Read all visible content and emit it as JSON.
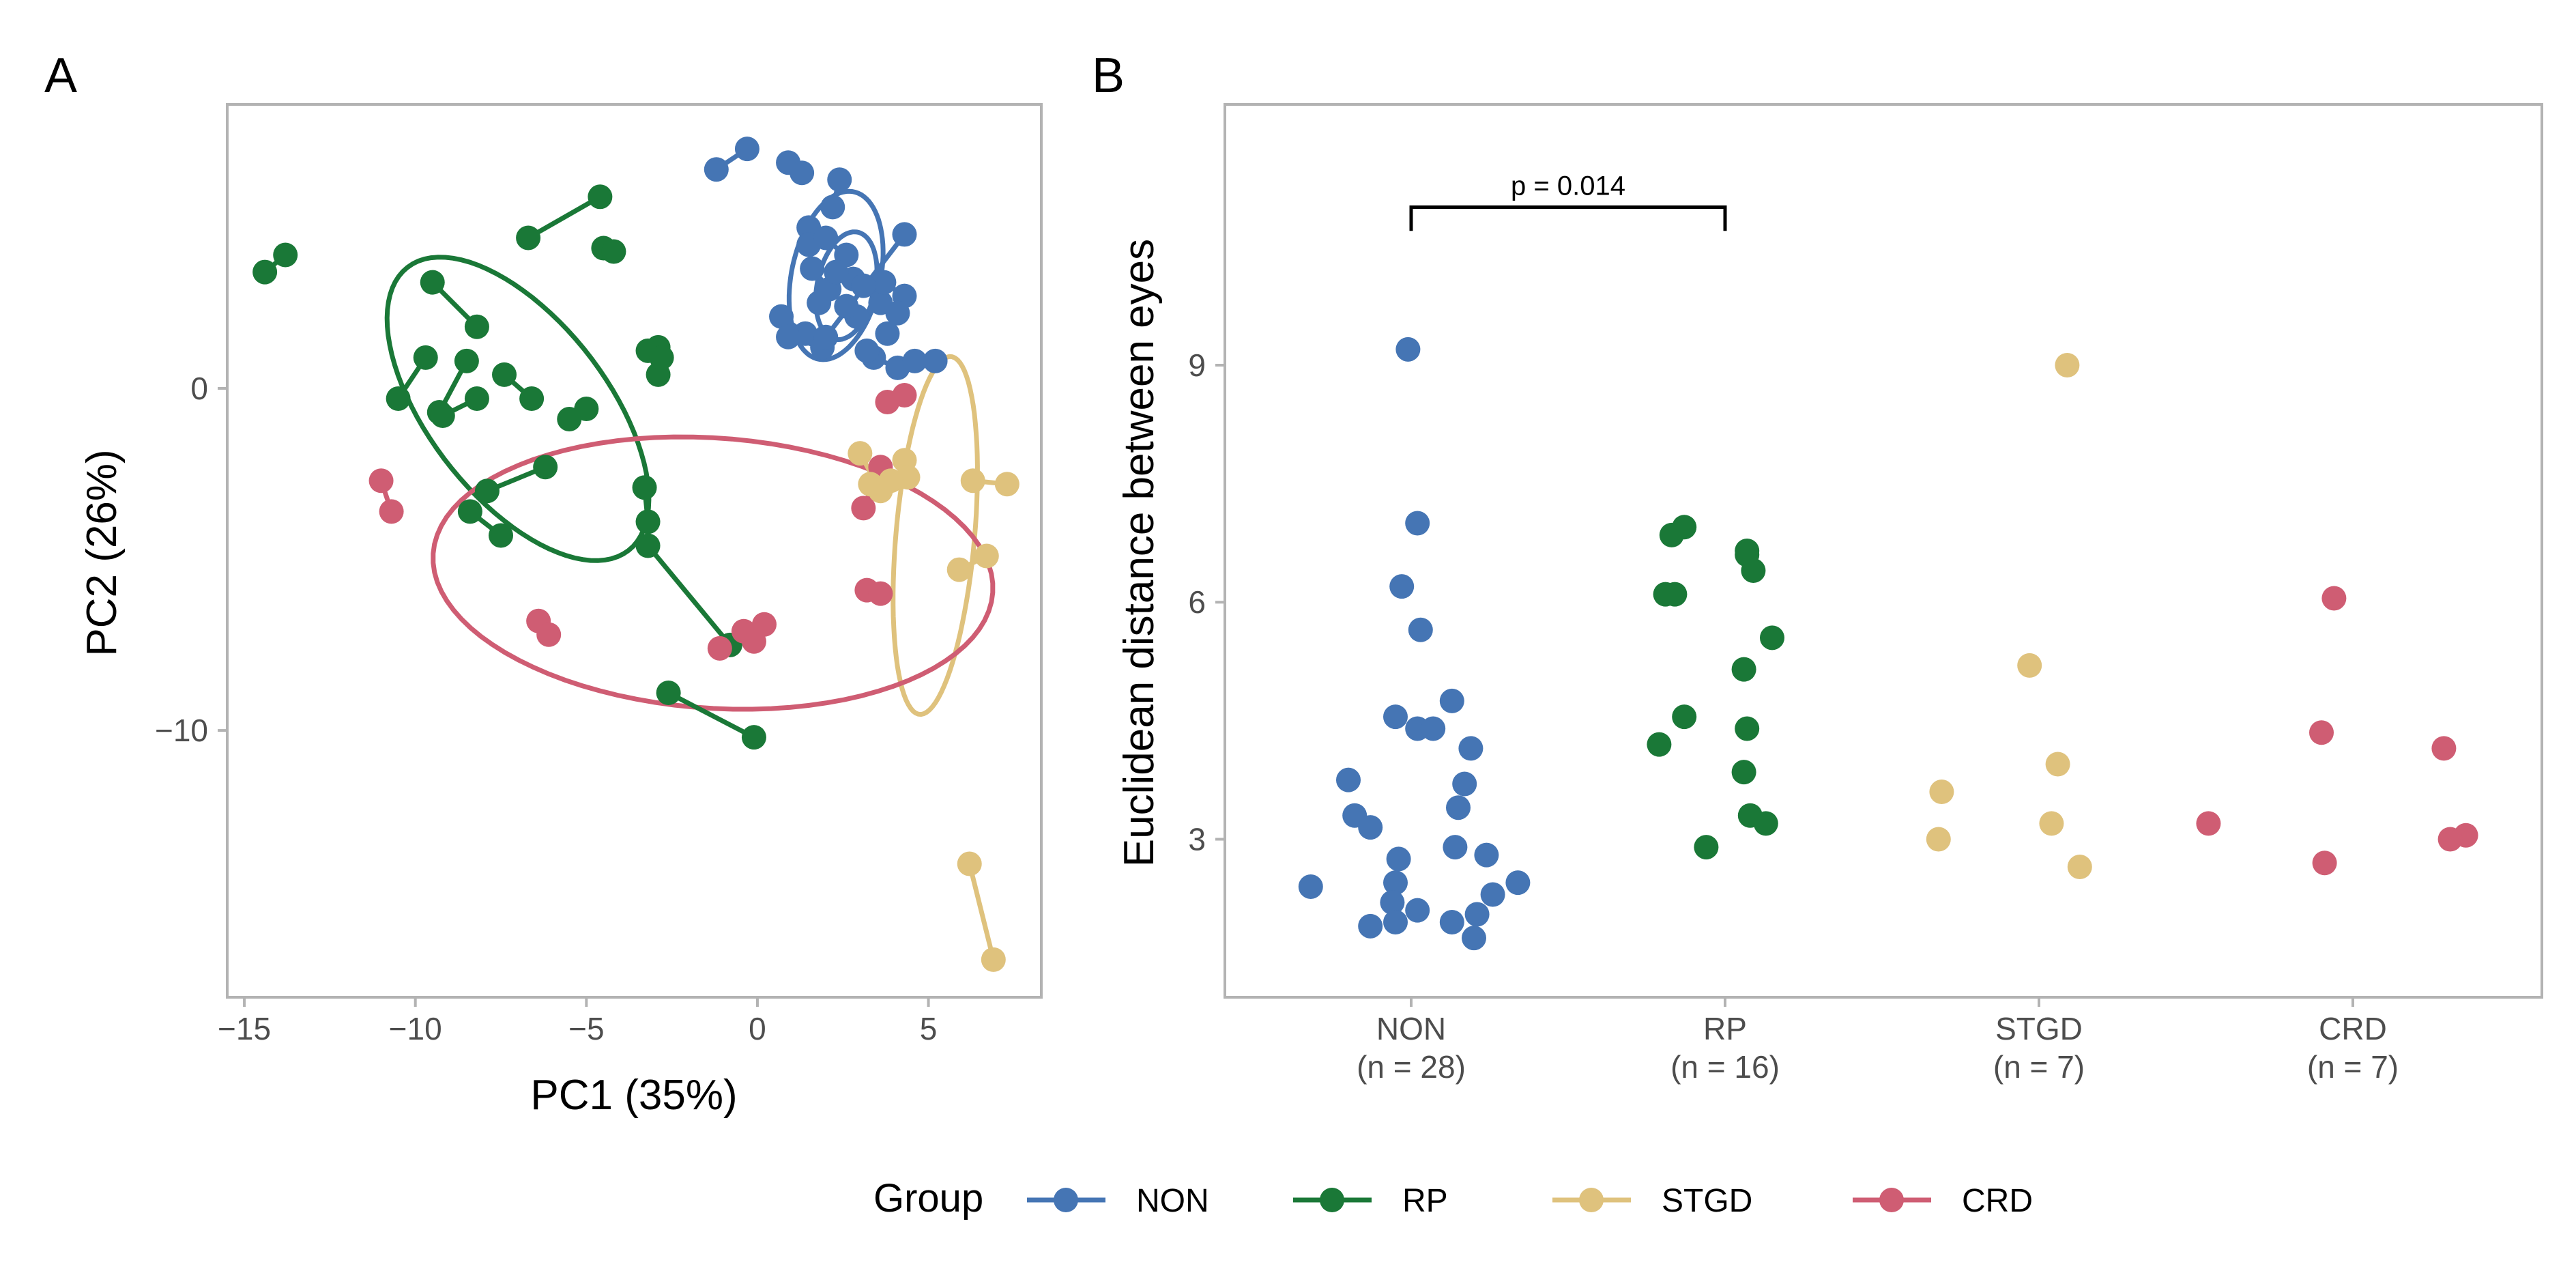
{
  "colors": {
    "NON": "#4575b4",
    "RP": "#1a7837",
    "STGD": "#dfc27d",
    "CRD": "#cf5d73"
  },
  "legend": {
    "title": "Group",
    "items": [
      {
        "key": "NON",
        "label": "NON"
      },
      {
        "key": "RP",
        "label": "RP"
      },
      {
        "key": "STGD",
        "label": "STGD"
      },
      {
        "key": "CRD",
        "label": "CRD"
      }
    ]
  },
  "chart_data": [
    {
      "panel": "A",
      "type": "scatter",
      "xlabel": "PC1 (35%)",
      "ylabel": "PC2 (26%)",
      "xlim": [
        -15.5,
        8.3
      ],
      "ylim": [
        -17.8,
        8.3
      ],
      "xticks": [
        {
          "v": -15,
          "label": "−15"
        },
        {
          "v": -10,
          "label": "−10"
        },
        {
          "v": -5,
          "label": "−5"
        },
        {
          "v": 0,
          "label": "0"
        },
        {
          "v": 5,
          "label": "5"
        }
      ],
      "yticks": [
        {
          "v": 0,
          "label": "0"
        },
        {
          "v": -10,
          "label": "−10"
        }
      ],
      "ellipses": [
        {
          "group": "NON",
          "cx": 2.3,
          "cy": 3.3,
          "rx": 2.6,
          "ry": 5.0,
          "angle": -12
        },
        {
          "group": "NON",
          "cx": 2.6,
          "cy": 3.0,
          "rx": 1.7,
          "ry": 3.2,
          "angle": -12
        },
        {
          "group": "RP",
          "cx": -7.0,
          "cy": -0.6,
          "rx": 10.5,
          "ry": 5.2,
          "angle": -52
        },
        {
          "group": "STGD",
          "cx": 5.2,
          "cy": -4.3,
          "rx": 2.3,
          "ry": 10.5,
          "angle": -5
        },
        {
          "group": "CRD",
          "cx": -1.3,
          "cy": -5.4,
          "rx": 16.4,
          "ry": 7.9,
          "angle": -4
        }
      ],
      "pairs": [
        {
          "group": "RP",
          "a": [
            -14.4,
            3.4
          ],
          "b": [
            -13.8,
            3.9
          ]
        },
        {
          "group": "RP",
          "a": [
            -6.7,
            4.4
          ],
          "b": [
            -4.6,
            5.6
          ]
        },
        {
          "group": "RP",
          "a": [
            -4.5,
            4.1
          ],
          "b": [
            -4.2,
            4.0
          ]
        },
        {
          "group": "RP",
          "a": [
            -9.5,
            3.1
          ],
          "b": [
            -8.2,
            1.8
          ]
        },
        {
          "group": "RP",
          "a": [
            -10.5,
            -0.3
          ],
          "b": [
            -9.7,
            0.9
          ]
        },
        {
          "group": "RP",
          "a": [
            -8.5,
            0.8
          ],
          "b": [
            -9.3,
            -0.7
          ]
        },
        {
          "group": "RP",
          "a": [
            -7.4,
            0.4
          ],
          "b": [
            -6.6,
            -0.3
          ]
        },
        {
          "group": "RP",
          "a": [
            -8.2,
            -0.3
          ],
          "b": [
            -9.2,
            -0.8
          ]
        },
        {
          "group": "RP",
          "a": [
            -5.0,
            -0.6
          ],
          "b": [
            -5.5,
            -0.9
          ]
        },
        {
          "group": "RP",
          "a": [
            -3.2,
            1.1
          ],
          "b": [
            -2.9,
            0.4
          ]
        },
        {
          "group": "RP",
          "a": [
            -2.9,
            1.2
          ],
          "b": [
            -2.8,
            0.9
          ]
        },
        {
          "group": "RP",
          "a": [
            -6.2,
            -2.3
          ],
          "b": [
            -7.9,
            -3.0
          ]
        },
        {
          "group": "RP",
          "a": [
            -8.4,
            -3.6
          ],
          "b": [
            -7.5,
            -4.3
          ]
        },
        {
          "group": "RP",
          "a": [
            -3.3,
            -2.9
          ],
          "b": [
            -3.2,
            -3.9
          ]
        },
        {
          "group": "RP",
          "a": [
            -3.2,
            -4.6
          ],
          "b": [
            -0.8,
            -7.5
          ]
        },
        {
          "group": "RP",
          "a": [
            -2.6,
            -8.9
          ],
          "b": [
            -0.1,
            -10.2
          ]
        },
        {
          "group": "CRD",
          "a": [
            -11.0,
            -2.7
          ],
          "b": [
            -10.7,
            -3.6
          ]
        },
        {
          "group": "CRD",
          "a": [
            -6.4,
            -6.8
          ],
          "b": [
            -6.1,
            -7.2
          ]
        },
        {
          "group": "CRD",
          "a": [
            -1.1,
            -7.6
          ],
          "b": [
            0.2,
            -6.9
          ]
        },
        {
          "group": "CRD",
          "a": [
            -0.4,
            -7.1
          ],
          "b": [
            -0.1,
            -7.4
          ]
        },
        {
          "group": "CRD",
          "a": [
            3.6,
            -2.3
          ],
          "b": [
            3.1,
            -3.5
          ]
        },
        {
          "group": "CRD",
          "a": [
            3.2,
            -5.9
          ],
          "b": [
            3.6,
            -6.0
          ]
        },
        {
          "group": "CRD",
          "a": [
            3.8,
            -0.4
          ],
          "b": [
            4.3,
            -0.2
          ]
        },
        {
          "group": "STGD",
          "a": [
            3.0,
            -1.9
          ],
          "b": [
            3.6,
            -3.0
          ]
        },
        {
          "group": "STGD",
          "a": [
            4.3,
            -2.1
          ],
          "b": [
            4.4,
            -2.6
          ]
        },
        {
          "group": "STGD",
          "a": [
            3.3,
            -2.8
          ],
          "b": [
            3.9,
            -2.7
          ]
        },
        {
          "group": "STGD",
          "a": [
            6.3,
            -2.7
          ],
          "b": [
            7.3,
            -2.8
          ]
        },
        {
          "group": "STGD",
          "a": [
            5.9,
            -5.3
          ],
          "b": [
            6.7,
            -4.9
          ]
        },
        {
          "group": "STGD",
          "a": [
            6.2,
            -13.9
          ],
          "b": [
            6.9,
            -16.7
          ]
        },
        {
          "group": "NON",
          "a": [
            -1.2,
            6.4
          ],
          "b": [
            -0.3,
            7.0
          ]
        },
        {
          "group": "NON",
          "a": [
            0.9,
            6.6
          ],
          "b": [
            1.3,
            6.3
          ]
        },
        {
          "group": "NON",
          "a": [
            2.4,
            6.1
          ],
          "b": [
            2.2,
            5.3
          ]
        },
        {
          "group": "NON",
          "a": [
            1.5,
            4.7
          ],
          "b": [
            2.6,
            3.9
          ]
        },
        {
          "group": "NON",
          "a": [
            1.6,
            3.5
          ],
          "b": [
            2.1,
            2.9
          ]
        },
        {
          "group": "NON",
          "a": [
            2.8,
            3.2
          ],
          "b": [
            3.6,
            2.5
          ]
        },
        {
          "group": "NON",
          "a": [
            0.7,
            2.1
          ],
          "b": [
            1.4,
            1.6
          ]
        },
        {
          "group": "NON",
          "a": [
            0.9,
            1.5
          ],
          "b": [
            1.9,
            1.2
          ]
        },
        {
          "group": "NON",
          "a": [
            3.7,
            3.1
          ],
          "b": [
            4.3,
            2.7
          ]
        },
        {
          "group": "NON",
          "a": [
            3.4,
            0.9
          ],
          "b": [
            4.1,
            0.6
          ]
        },
        {
          "group": "NON",
          "a": [
            4.6,
            0.8
          ],
          "b": [
            5.2,
            0.8
          ]
        },
        {
          "group": "NON",
          "a": [
            4.3,
            4.5
          ],
          "b": [
            2.0,
            1.5
          ]
        }
      ],
      "points": [
        {
          "group": "NON",
          "x": 1.5,
          "y": 4.2
        },
        {
          "group": "NON",
          "x": 2.0,
          "y": 4.4
        },
        {
          "group": "NON",
          "x": 2.3,
          "y": 3.4
        },
        {
          "group": "NON",
          "x": 2.9,
          "y": 2.1
        },
        {
          "group": "NON",
          "x": 3.2,
          "y": 1.1
        },
        {
          "group": "NON",
          "x": 3.8,
          "y": 1.6
        },
        {
          "group": "NON",
          "x": 2.6,
          "y": 2.4
        },
        {
          "group": "NON",
          "x": 1.8,
          "y": 2.5
        },
        {
          "group": "NON",
          "x": 4.1,
          "y": 2.2
        },
        {
          "group": "NON",
          "x": 3.1,
          "y": 3.0
        }
      ]
    },
    {
      "panel": "B",
      "type": "scatter",
      "ylabel": "Euclidean distance between eyes",
      "ylim": [
        1.0,
        12.3
      ],
      "yticks": [
        3,
        6,
        9
      ],
      "categories": [
        {
          "name": "NON",
          "n": "(n = 28)"
        },
        {
          "name": "RP",
          "n": "(n = 16)"
        },
        {
          "name": "STGD",
          "n": "(n = 7)"
        },
        {
          "name": "CRD",
          "n": "(n = 7)"
        }
      ],
      "significance": {
        "label": "p = 0.014",
        "from": 0,
        "to": 1,
        "y": 11.0,
        "tick": 0.3
      },
      "series": [
        {
          "name": "NON",
          "points": [
            {
              "x": -0.01,
              "y": 9.2
            },
            {
              "x": 0.02,
              "y": 7.0
            },
            {
              "x": -0.03,
              "y": 6.2
            },
            {
              "x": 0.03,
              "y": 5.65
            },
            {
              "x": -0.05,
              "y": 4.55
            },
            {
              "x": 0.13,
              "y": 4.75
            },
            {
              "x": 0.02,
              "y": 4.4
            },
            {
              "x": 0.07,
              "y": 4.4
            },
            {
              "x": 0.19,
              "y": 4.15
            },
            {
              "x": -0.2,
              "y": 3.75
            },
            {
              "x": 0.17,
              "y": 3.7
            },
            {
              "x": 0.15,
              "y": 3.4
            },
            {
              "x": -0.18,
              "y": 3.3
            },
            {
              "x": -0.13,
              "y": 3.15
            },
            {
              "x": -0.04,
              "y": 2.75
            },
            {
              "x": 0.14,
              "y": 2.9
            },
            {
              "x": 0.24,
              "y": 2.8
            },
            {
              "x": -0.32,
              "y": 2.4
            },
            {
              "x": -0.05,
              "y": 2.45
            },
            {
              "x": 0.34,
              "y": 2.45
            },
            {
              "x": 0.26,
              "y": 2.3
            },
            {
              "x": -0.06,
              "y": 2.2
            },
            {
              "x": 0.13,
              "y": 1.95
            },
            {
              "x": 0.21,
              "y": 2.05
            },
            {
              "x": -0.13,
              "y": 1.9
            },
            {
              "x": -0.05,
              "y": 1.95
            },
            {
              "x": 0.2,
              "y": 1.75
            },
            {
              "x": 0.02,
              "y": 2.1
            }
          ]
        },
        {
          "name": "RP",
          "points": [
            {
              "x": 0.87,
              "y": 6.95
            },
            {
              "x": 0.83,
              "y": 6.85
            },
            {
              "x": 1.07,
              "y": 6.65
            },
            {
              "x": 1.07,
              "y": 6.6
            },
            {
              "x": 1.09,
              "y": 6.4
            },
            {
              "x": 0.81,
              "y": 6.1
            },
            {
              "x": 0.84,
              "y": 6.1
            },
            {
              "x": 1.15,
              "y": 5.55
            },
            {
              "x": 1.06,
              "y": 5.15
            },
            {
              "x": 0.87,
              "y": 4.55
            },
            {
              "x": 1.07,
              "y": 4.4
            },
            {
              "x": 0.79,
              "y": 4.2
            },
            {
              "x": 1.06,
              "y": 3.85
            },
            {
              "x": 1.08,
              "y": 3.3
            },
            {
              "x": 1.13,
              "y": 3.2
            },
            {
              "x": 0.94,
              "y": 2.9
            }
          ]
        },
        {
          "name": "STGD",
          "points": [
            {
              "x": 2.09,
              "y": 9.0
            },
            {
              "x": 1.97,
              "y": 5.2
            },
            {
              "x": 2.06,
              "y": 3.95
            },
            {
              "x": 1.69,
              "y": 3.6
            },
            {
              "x": 2.04,
              "y": 3.2
            },
            {
              "x": 1.68,
              "y": 3.0
            },
            {
              "x": 2.13,
              "y": 2.65
            }
          ]
        },
        {
          "name": "CRD",
          "points": [
            {
              "x": 2.94,
              "y": 6.05
            },
            {
              "x": 2.9,
              "y": 4.35
            },
            {
              "x": 3.29,
              "y": 4.15
            },
            {
              "x": 2.54,
              "y": 3.2
            },
            {
              "x": 3.36,
              "y": 3.05
            },
            {
              "x": 3.31,
              "y": 3.0
            },
            {
              "x": 2.91,
              "y": 2.7
            }
          ]
        }
      ]
    }
  ]
}
